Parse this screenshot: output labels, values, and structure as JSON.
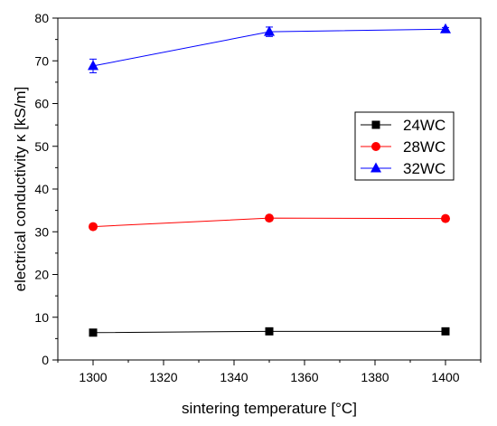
{
  "chart_data": {
    "type": "line",
    "xlabel": "sintering temperature [°C]",
    "ylabel": "electrical conductivity κ [kS/m]",
    "xlim": [
      1290,
      1410
    ],
    "ylim": [
      0,
      80
    ],
    "x_ticks": [
      1300,
      1320,
      1340,
      1360,
      1380,
      1400
    ],
    "x_tick_labels": [
      "1300",
      "1320",
      "1340",
      "1360",
      "1380",
      "1400"
    ],
    "y_ticks": [
      0,
      10,
      20,
      30,
      40,
      50,
      60,
      70,
      80
    ],
    "y_tick_labels": [
      "0",
      "10",
      "20",
      "30",
      "40",
      "50",
      "60",
      "70",
      "80"
    ],
    "grid": false,
    "legend_position": "center-right",
    "x": [
      1300,
      1350,
      1400
    ],
    "series": [
      {
        "name": "24WC",
        "values": [
          6.4,
          6.7,
          6.7
        ],
        "errors": [
          0.2,
          0.2,
          0.2
        ],
        "color": "#000000",
        "marker": "square"
      },
      {
        "name": "28WC",
        "values": [
          31.2,
          33.2,
          33.1
        ],
        "errors": [
          0.3,
          0.3,
          0.3
        ],
        "color": "#ff0000",
        "marker": "circle"
      },
      {
        "name": "32WC",
        "values": [
          68.8,
          76.8,
          77.4
        ],
        "errors": [
          1.6,
          1.1,
          0.4
        ],
        "color": "#0000ff",
        "marker": "triangle"
      }
    ]
  }
}
